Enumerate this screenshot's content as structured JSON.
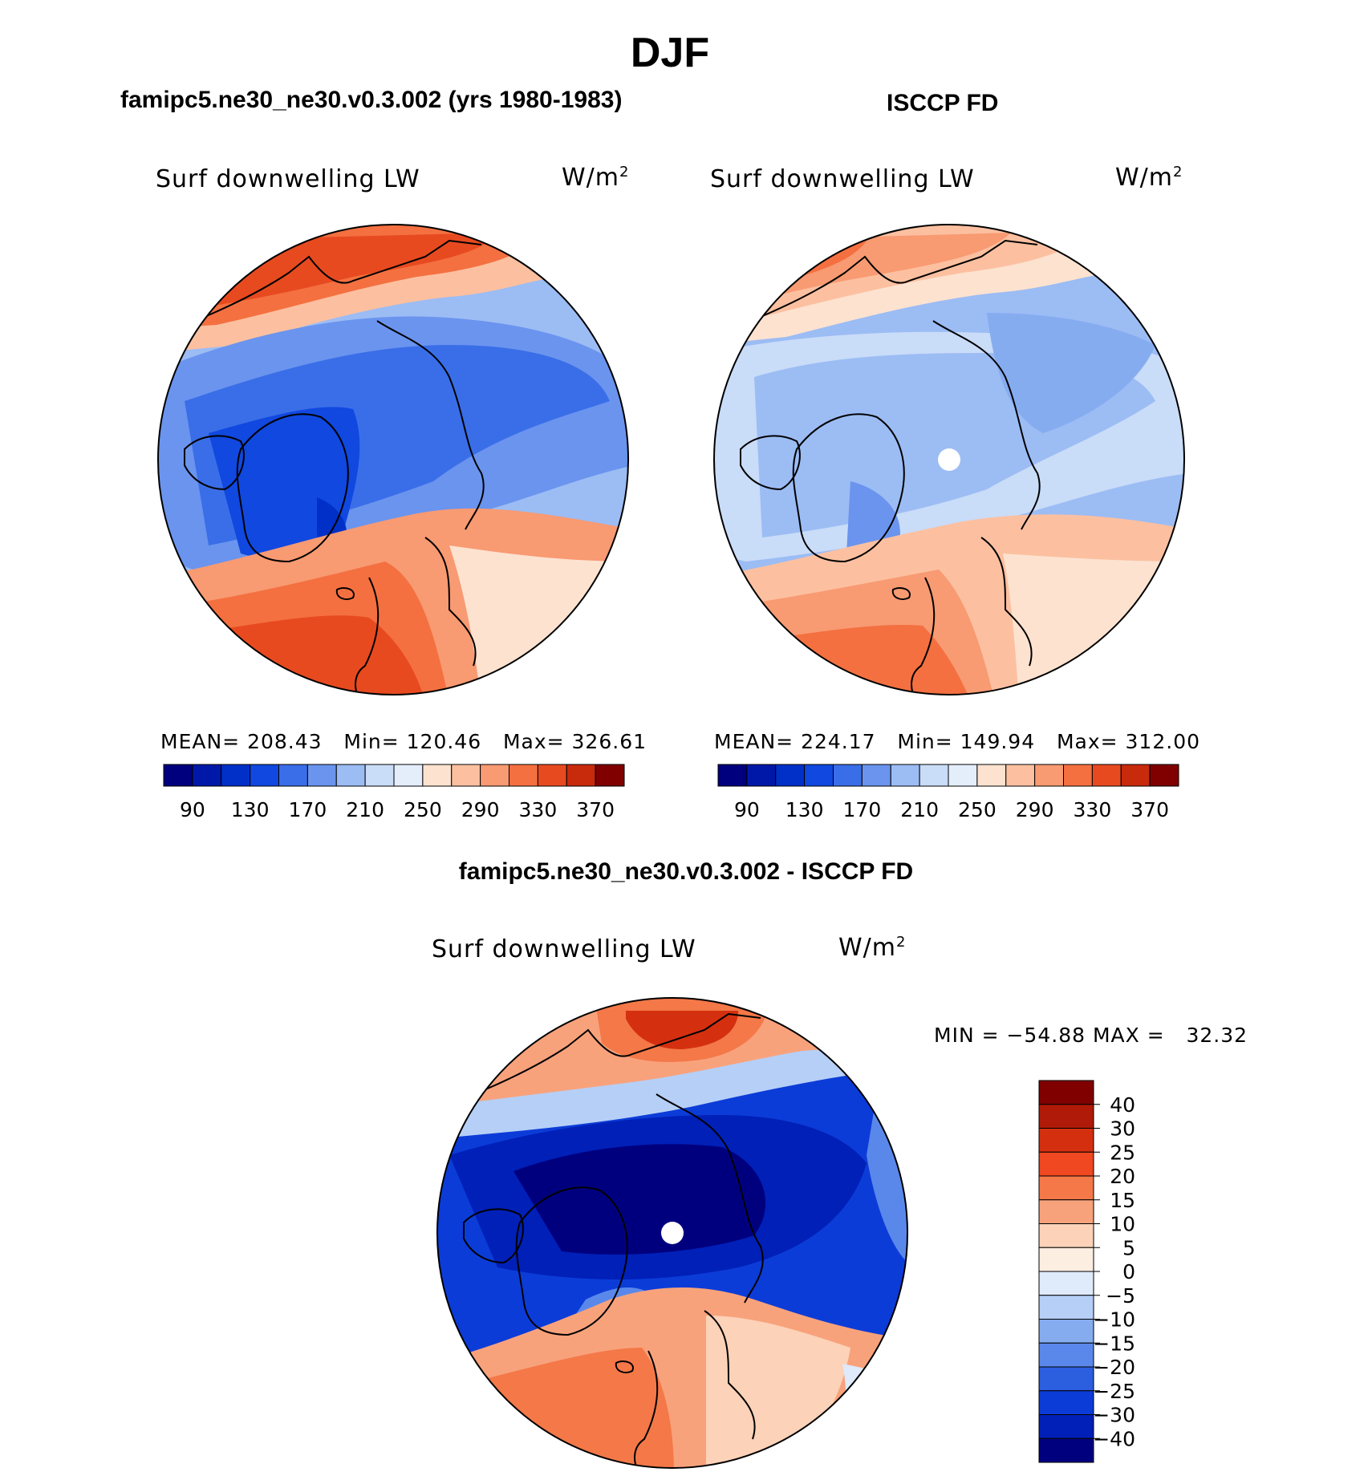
{
  "page_title": "DJF",
  "panels": [
    {
      "title": "famipc5.ne30_ne30.v0.3.002 (yrs 1980-1983)",
      "variable": "Surf downwelling LW",
      "units_base": "W/m",
      "units_exp": "2",
      "stats": "MEAN= 208.43   Min= 120.46   Max= 326.61"
    },
    {
      "title": "ISCCP FD",
      "variable": "Surf downwelling LW",
      "units_base": "W/m",
      "units_exp": "2",
      "stats": "MEAN= 224.17   Min= 149.94   Max= 312.00"
    },
    {
      "title": "famipc5.ne30_ne30.v0.3.002 - ISCCP FD",
      "variable": "Surf downwelling LW",
      "units_base": "W/m",
      "units_exp": "2",
      "stats": "MIN = −54.88 MAX =   32.32"
    }
  ],
  "chart_data": [
    {
      "type": "heatmap",
      "projection": "north-polar-stereographic",
      "title": "famipc5.ne30_ne30.v0.3.002 (yrs 1980-1983)",
      "variable": "Surf downwelling LW",
      "units": "W/m2",
      "mean": 208.43,
      "min": 120.46,
      "max": 326.61,
      "colorbar": {
        "orientation": "horizontal",
        "levels": [
          90,
          110,
          130,
          150,
          170,
          190,
          210,
          230,
          250,
          270,
          290,
          310,
          330,
          350,
          370
        ],
        "tick_labels": [
          "90",
          "130",
          "170",
          "210",
          "250",
          "290",
          "330",
          "370"
        ],
        "colors": [
          "#00007f",
          "#0018a8",
          "#0030c8",
          "#1048e0",
          "#3a6ee8",
          "#6a94ee",
          "#9cbcf4",
          "#c9dcf8",
          "#e4eefb",
          "#fde2d0",
          "#fcc0a0",
          "#f89a72",
          "#f47040",
          "#e84a20",
          "#c82a0c",
          "#800000"
        ]
      }
    },
    {
      "type": "heatmap",
      "projection": "north-polar-stereographic",
      "title": "ISCCP FD",
      "variable": "Surf downwelling LW",
      "units": "W/m2",
      "mean": 224.17,
      "min": 149.94,
      "max": 312.0,
      "colorbar": {
        "orientation": "horizontal",
        "levels": [
          90,
          110,
          130,
          150,
          170,
          190,
          210,
          230,
          250,
          270,
          290,
          310,
          330,
          350,
          370
        ],
        "tick_labels": [
          "90",
          "130",
          "170",
          "210",
          "250",
          "290",
          "330",
          "370"
        ],
        "colors": [
          "#00007f",
          "#0018a8",
          "#0030c8",
          "#1048e0",
          "#3a6ee8",
          "#6a94ee",
          "#9cbcf4",
          "#c9dcf8",
          "#e4eefb",
          "#fde2d0",
          "#fcc0a0",
          "#f89a72",
          "#f47040",
          "#e84a20",
          "#c82a0c",
          "#800000"
        ]
      }
    },
    {
      "type": "heatmap",
      "projection": "north-polar-stereographic",
      "title": "famipc5.ne30_ne30.v0.3.002 - ISCCP FD",
      "variable": "Surf downwelling LW",
      "units": "W/m2",
      "min": -54.88,
      "max": 32.32,
      "colorbar": {
        "orientation": "vertical",
        "levels": [
          -40,
          -30,
          -25,
          -20,
          -15,
          -10,
          -5,
          0,
          5,
          10,
          15,
          20,
          25,
          30,
          40
        ],
        "tick_labels": [
          "40",
          "30",
          "25",
          "20",
          "15",
          "10",
          "5",
          "0",
          "−5",
          "−10",
          "−15",
          "−20",
          "−25",
          "−30",
          "−40"
        ],
        "colors_top_to_bottom": [
          "#800000",
          "#b01a08",
          "#d43010",
          "#f04820",
          "#f47848",
          "#f8a27c",
          "#fcd2b8",
          "#fdeee2",
          "#dfeafb",
          "#b6cff6",
          "#86acf0",
          "#5a88ea",
          "#2c5ee0",
          "#0c3cd8",
          "#0020b8",
          "#00007f"
        ]
      }
    }
  ]
}
